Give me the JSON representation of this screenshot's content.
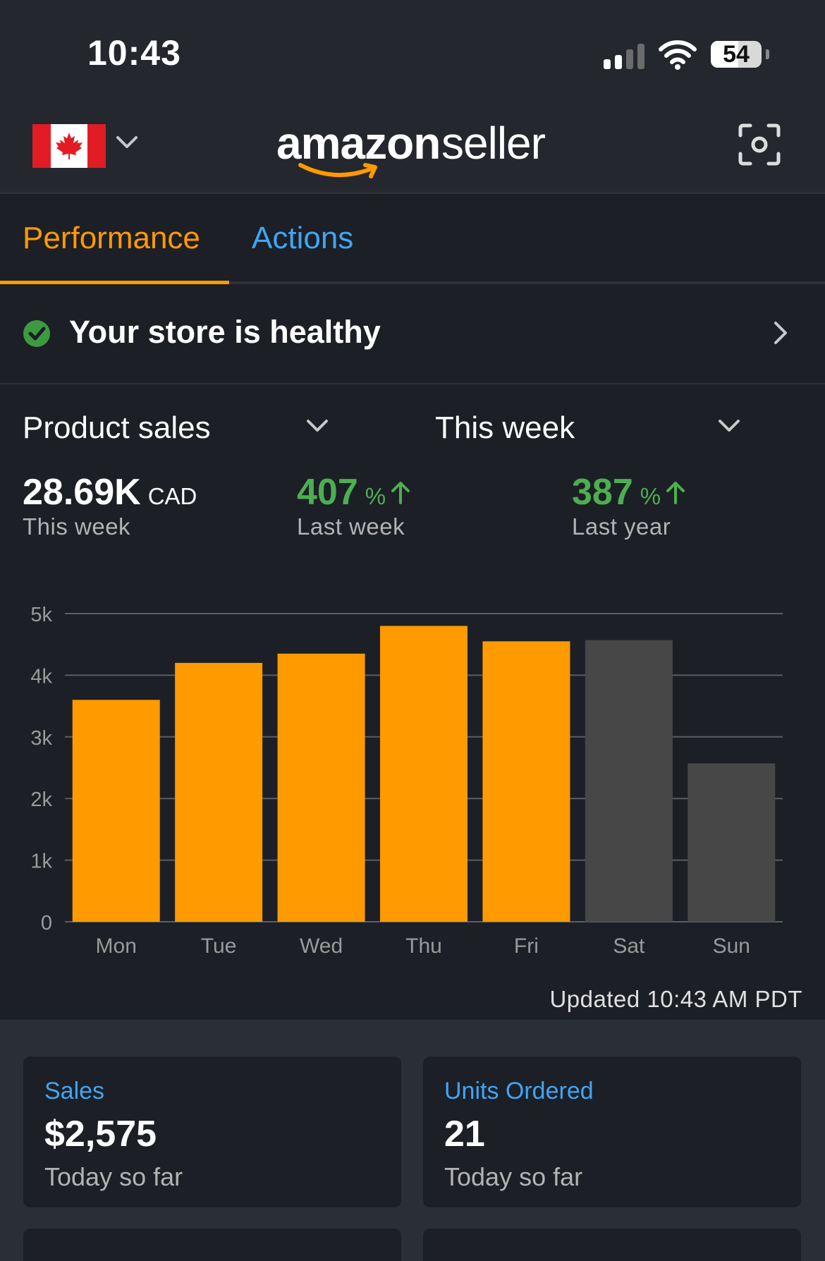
{
  "status_bar": {
    "time": "10:43",
    "battery": "54"
  },
  "header": {
    "country": "Canada",
    "logo_word1": "amazon",
    "logo_word2": "seller"
  },
  "tabs": [
    {
      "label": "Performance",
      "active": true
    },
    {
      "label": "Actions",
      "active": false
    }
  ],
  "health": {
    "message": "Your store is healthy"
  },
  "filters": {
    "metric": "Product sales",
    "period": "This week"
  },
  "summary": {
    "total_value": "28.69K",
    "total_unit": "CAD",
    "total_label": "This week",
    "last_week_pct": "407",
    "last_week_label": "Last week",
    "last_year_pct": "387",
    "last_year_label": "Last year",
    "pct_symbol": "%"
  },
  "chart_data": {
    "type": "bar",
    "categories": [
      "Mon",
      "Tue",
      "Wed",
      "Thu",
      "Fri",
      "Sat",
      "Sun"
    ],
    "values": [
      3600,
      4200,
      4350,
      4800,
      4550,
      4570,
      2570
    ],
    "highlight": [
      true,
      true,
      true,
      true,
      true,
      false,
      false
    ],
    "y_ticks": [
      "0",
      "1k",
      "2k",
      "3k",
      "4k",
      "5k"
    ],
    "ylim": [
      0,
      5000
    ],
    "grid": true,
    "colors": {
      "highlight": "#ff9a00",
      "muted": "#474747",
      "grid": "#5a5d63"
    }
  },
  "updated_text": "Updated 10:43 AM PDT",
  "cards": [
    {
      "title": "Sales",
      "value": "$2,575",
      "subtitle": "Today so far"
    },
    {
      "title": "Units Ordered",
      "value": "21",
      "subtitle": "Today so far"
    }
  ],
  "colors": {
    "accent": "#ff9a00",
    "link": "#3fa6f4",
    "positive": "#4caf50",
    "background": "#1c1f26"
  }
}
